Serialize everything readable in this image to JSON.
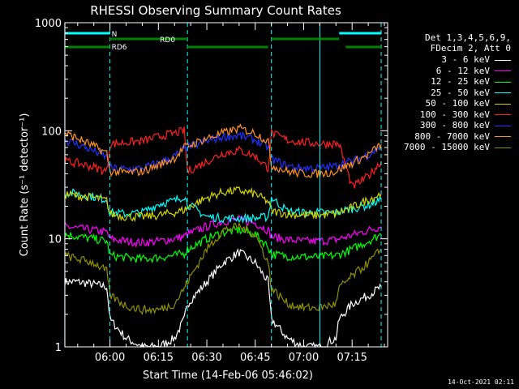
{
  "chart_data": {
    "type": "line",
    "title": "RHESSI Observing Summary Count Rates",
    "xlabel": "Start Time (14-Feb-06 05:46:02)",
    "ylabel": "Count Rate (s⁻¹ detector⁻¹)",
    "yscale": "log",
    "ylim": [
      1,
      1000
    ],
    "xlim": [
      "05:46:02",
      "07:26:00"
    ],
    "x_ticks": [
      "06:00",
      "06:15",
      "06:30",
      "06:45",
      "07:00",
      "07:15"
    ],
    "y_ticks": [
      "1",
      "10",
      "100",
      "1000"
    ],
    "grid": false,
    "legend_position": "right",
    "legend_header": [
      "Det 1,3,4,5,6,9,",
      "FDecim 2, Att 0"
    ],
    "x": [
      "05:46",
      "05:50",
      "05:55",
      "05:59",
      "06:00",
      "06:05",
      "06:10",
      "06:15",
      "06:20",
      "06:23",
      "06:24",
      "06:30",
      "06:35",
      "06:40",
      "06:45",
      "06:49",
      "06:50",
      "06:55",
      "07:00",
      "07:05",
      "07:10",
      "07:11",
      "07:15",
      "07:20",
      "07:24"
    ],
    "series": [
      {
        "name": "3 - 6 keV",
        "color": "#ffffff",
        "values": [
          4.0,
          4.0,
          3.8,
          3.6,
          1.8,
          1.2,
          1.0,
          1.0,
          1.2,
          1.8,
          2.5,
          4.0,
          6.0,
          7.5,
          6.0,
          4.0,
          1.8,
          1.2,
          1.0,
          1.0,
          1.2,
          1.8,
          2.5,
          3.0,
          3.6
        ]
      },
      {
        "name": "6 - 12 keV",
        "color": "#ff00ff",
        "values": [
          13.0,
          12.5,
          12.0,
          11.5,
          10.0,
          9.5,
          9.2,
          9.5,
          10.0,
          10.5,
          11.0,
          13.0,
          14.5,
          15.0,
          14.0,
          12.0,
          10.5,
          9.8,
          9.5,
          9.5,
          9.8,
          10.0,
          10.8,
          12.0,
          13.0
        ]
      },
      {
        "name": "12 - 25 keV",
        "color": "#00ff00",
        "values": [
          11.0,
          10.5,
          10.0,
          9.5,
          7.0,
          6.7,
          6.5,
          6.7,
          7.0,
          7.3,
          8.0,
          10.0,
          11.5,
          12.0,
          11.0,
          8.5,
          7.2,
          6.9,
          6.8,
          6.8,
          7.0,
          7.2,
          8.0,
          9.5,
          11.0
        ]
      },
      {
        "name": "25 - 50 keV",
        "color": "#00ffff",
        "values": [
          27.0,
          26.0,
          24.5,
          23.0,
          17.5,
          17.0,
          17.5,
          21.0,
          22.5,
          25.0,
          21.0,
          16.0,
          15.5,
          15.5,
          15.5,
          16.0,
          24.0,
          18.0,
          17.5,
          17.5,
          17.5,
          18.0,
          19.0,
          20.5,
          23.0
        ]
      },
      {
        "name": "50 - 100 keV",
        "color": "#d4d400",
        "values": [
          26.0,
          25.0,
          24.0,
          22.5,
          17.0,
          16.0,
          16.0,
          16.5,
          17.5,
          18.5,
          19.5,
          24.0,
          27.0,
          28.0,
          26.0,
          22.0,
          18.0,
          17.0,
          16.5,
          16.5,
          17.0,
          17.5,
          19.5,
          23.0,
          26.0
        ]
      },
      {
        "name": "100 - 300 keV",
        "color": "#ff2020",
        "values": [
          52.0,
          50.0,
          46.0,
          42.0,
          75.0,
          78.0,
          80.0,
          88.0,
          95.0,
          100.0,
          42.0,
          52.0,
          62.0,
          66.0,
          58.0,
          45.0,
          95.0,
          82.0,
          78.0,
          76.0,
          76.0,
          75.0,
          30.0,
          38.0,
          52.0
        ]
      },
      {
        "name": "300 - 800 keV",
        "color": "#2030ff",
        "values": [
          82.0,
          75.0,
          65.0,
          57.0,
          45.0,
          44.0,
          45.0,
          50.0,
          58.0,
          68.0,
          70.0,
          80.0,
          88.0,
          90.0,
          82.0,
          70.0,
          55.0,
          47.0,
          45.0,
          45.0,
          47.0,
          50.0,
          52.0,
          60.0,
          72.0
        ]
      },
      {
        "name": "800 - 7000 keV",
        "color": "#ff9020",
        "values": [
          95.0,
          85.0,
          72.0,
          62.0,
          42.0,
          41.0,
          42.0,
          48.0,
          56.0,
          70.0,
          72.0,
          85.0,
          95.0,
          105.0,
          95.0,
          80.0,
          48.0,
          42.0,
          40.0,
          40.0,
          42.0,
          44.0,
          50.0,
          60.0,
          75.0
        ]
      },
      {
        "name": "7000 - 15000 keV",
        "color": "#909000",
        "values": [
          7.0,
          6.5,
          6.0,
          5.0,
          3.0,
          2.4,
          2.2,
          2.2,
          2.5,
          3.5,
          4.0,
          8.0,
          12.0,
          13.0,
          11.0,
          6.0,
          3.5,
          2.5,
          2.3,
          2.3,
          2.5,
          3.5,
          4.5,
          6.0,
          8.0
        ]
      }
    ],
    "flag_bars": [
      {
        "label": "N",
        "color": "#00ffff",
        "segments": [
          [
            "05:46",
            "06:00"
          ],
          [
            "07:11",
            "07:24"
          ]
        ]
      },
      {
        "label": "RD0",
        "color": "#008000",
        "segments": [
          [
            "06:00",
            "06:24"
          ],
          [
            "06:50",
            "07:11"
          ]
        ]
      },
      {
        "label": "RD6",
        "color": "#008000",
        "segments": [
          [
            "05:46",
            "06:00"
          ],
          [
            "06:24",
            "06:49"
          ],
          [
            "07:13",
            "07:24"
          ]
        ]
      }
    ],
    "vertical_markers": {
      "solid": [
        "05:46",
        "07:05"
      ],
      "dashed": [
        "06:00",
        "06:24",
        "06:50",
        "07:24"
      ]
    }
  },
  "footer": {
    "timestamp": "14-Oct-2021 02:11"
  }
}
